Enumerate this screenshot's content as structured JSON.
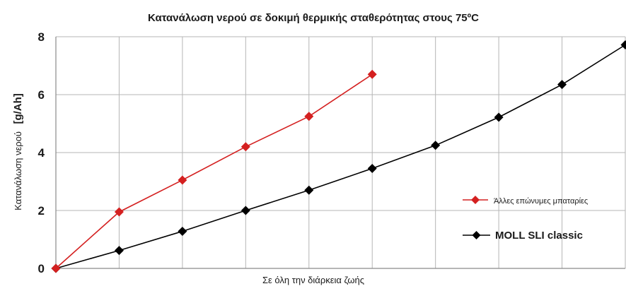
{
  "chart_data": {
    "type": "line",
    "title": "Κατανάλωση νερού σε δοκιμή θερμικής σταθερότητας στους 75ºC",
    "xlabel": "Σε όλη την διάρκεια ζωής",
    "ylabel_main": "Κατανάλωση νερού",
    "ylabel_unit": "[g/Ah]",
    "ylim": [
      0,
      8
    ],
    "yticks": [
      "0",
      "2",
      "4",
      "6",
      "8"
    ],
    "x_count": 10,
    "grid": true,
    "legend_position": "right",
    "series": [
      {
        "name": "Άλλες επώνυμες μπαταρίες",
        "color": "#d42020",
        "marker": "diamond",
        "x": [
          0,
          1,
          2,
          3,
          4,
          5
        ],
        "values": [
          0,
          1.95,
          3.05,
          4.2,
          5.25,
          6.7
        ]
      },
      {
        "name": "MOLL SLI classic",
        "color": "#000000",
        "marker": "diamond",
        "x": [
          0,
          1,
          2,
          3,
          4,
          5,
          6,
          7,
          8,
          9
        ],
        "values": [
          0,
          0.62,
          1.28,
          2.0,
          2.7,
          3.45,
          4.25,
          5.22,
          6.35,
          7.72
        ]
      }
    ]
  }
}
